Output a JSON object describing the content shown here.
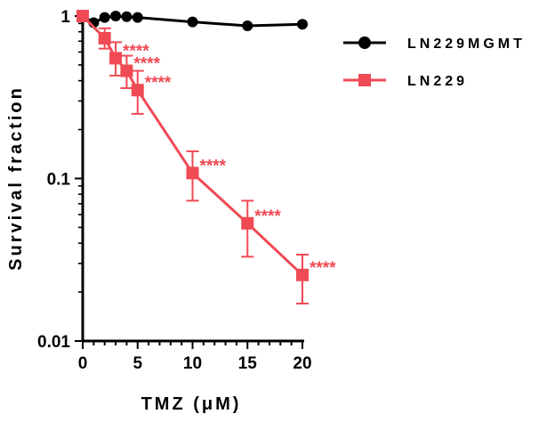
{
  "chart_data": {
    "type": "line",
    "xlabel": "TMZ (μM)",
    "ylabel": "Survival fraction",
    "xlim": [
      0,
      20
    ],
    "ylim": [
      0.01,
      1
    ],
    "yscale": "log",
    "x_ticks": [
      "0",
      "5",
      "10",
      "15",
      "20"
    ],
    "y_ticks": [
      {
        "value": 1,
        "label": "1"
      },
      {
        "value": 0.1,
        "label": "0.1"
      },
      {
        "value": 0.01,
        "label": "0.01"
      }
    ],
    "legend_position": "top-right",
    "series": [
      {
        "name": "LN229MGMT",
        "color": "#000000",
        "marker": "circle",
        "x": [
          0,
          1,
          2,
          3,
          4,
          5,
          10,
          15,
          20
        ],
        "y": [
          1.0,
          0.91,
          0.98,
          1.0,
          0.99,
          0.98,
          0.92,
          0.87,
          0.89
        ]
      },
      {
        "name": "LN229",
        "color": "#f04a54",
        "marker": "square",
        "x": [
          0,
          2,
          3,
          4,
          5,
          10,
          15,
          20
        ],
        "y": [
          1.0,
          0.73,
          0.55,
          0.46,
          0.35,
          0.108,
          0.053,
          0.0255
        ],
        "err_low": [
          0.95,
          0.63,
          0.43,
          0.36,
          0.25,
          0.073,
          0.033,
          0.017
        ],
        "err_high": [
          1.05,
          0.84,
          0.69,
          0.57,
          0.46,
          0.147,
          0.073,
          0.034
        ],
        "annotations": [
          {
            "x": 3,
            "y": 0.55,
            "text": "****"
          },
          {
            "x": 4,
            "y": 0.46,
            "text": "****"
          },
          {
            "x": 5,
            "y": 0.35,
            "text": "****"
          },
          {
            "x": 10,
            "y": 0.108,
            "text": "****"
          },
          {
            "x": 15,
            "y": 0.053,
            "text": "****"
          },
          {
            "x": 20,
            "y": 0.0255,
            "text": "****"
          }
        ]
      }
    ]
  }
}
